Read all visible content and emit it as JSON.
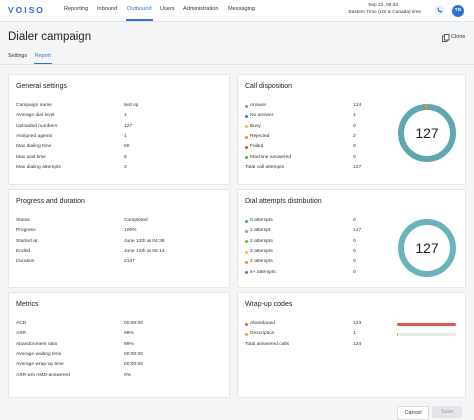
{
  "header": {
    "logo": "VOISO",
    "nav": [
      "Reporting",
      "Inbound",
      "Outbound",
      "Users",
      "Administration",
      "Messaging"
    ],
    "active_nav": 2,
    "datetime": "Sep 22, 09:33",
    "timezone": "Eastern Time (US & Canada) time",
    "avatar": "TB"
  },
  "page": {
    "title": "Dialer campaign",
    "clone": "Clone",
    "tabs": [
      "Settings",
      "Report"
    ],
    "active_tab": 1
  },
  "cards": [
    {
      "title": "General settings",
      "rows": [
        {
          "label": "Campaign name",
          "value": "test sp"
        },
        {
          "label": "Average dial level",
          "value": "1"
        },
        {
          "label": "Uploaded numbers",
          "value": "127"
        },
        {
          "label": "Assigned agents",
          "value": "1"
        },
        {
          "label": "Max dialing time",
          "value": "60"
        },
        {
          "label": "Max wait time",
          "value": "5"
        },
        {
          "label": "Max dialing attempts",
          "value": "3"
        }
      ]
    },
    {
      "title": "Call disposition",
      "chart": "donut",
      "rows": [
        {
          "label": "Answer",
          "value": "124",
          "color": "#5ea8ae"
        },
        {
          "label": "No answer",
          "value": "1",
          "color": "#3a7fd0"
        },
        {
          "label": "Busy",
          "value": "0",
          "color": "#f2c037"
        },
        {
          "label": "Rejected",
          "value": "2",
          "color": "#f08a24"
        },
        {
          "label": "Failed",
          "value": "0",
          "color": "#e04a3f"
        },
        {
          "label": "Machine answered",
          "value": "0",
          "color": "#4caf50"
        },
        {
          "label": "Total call attempts",
          "value": "127"
        }
      ]
    },
    {
      "title": "Progress and duration",
      "rows": [
        {
          "label": "Status",
          "value": "Completed"
        },
        {
          "label": "Progress",
          "value": "100%"
        },
        {
          "label": "Started at",
          "value": "June 12th at 04:38"
        },
        {
          "label": "Ended",
          "value": "June 12th at 05:14"
        },
        {
          "label": "Duration",
          "value": "2147"
        }
      ]
    },
    {
      "title": "Dial attempts distribution",
      "chart": "donut",
      "rows": [
        {
          "label": "0 attempts",
          "value": "0",
          "color": "#4caf50"
        },
        {
          "label": "1 attempt",
          "value": "127",
          "color": "#6ab3bb"
        },
        {
          "label": "2 attempts",
          "value": "0",
          "color": "#7cb342"
        },
        {
          "label": "3 attempts",
          "value": "0",
          "color": "#f2c037"
        },
        {
          "label": "4 attempts",
          "value": "0",
          "color": "#f08a24"
        },
        {
          "label": "5+ attempts",
          "value": "0",
          "color": "#3a7fd0"
        }
      ]
    },
    {
      "title": "Metrics",
      "rows": [
        {
          "label": "ACD",
          "value": "00:00:00"
        },
        {
          "label": "ASR",
          "value": "98%"
        },
        {
          "label": "Abandonment ratio",
          "value": "99%"
        },
        {
          "label": "Average waiting time",
          "value": "00:00:00"
        },
        {
          "label": "Average wrap-up time",
          "value": "00:00:00"
        },
        {
          "label": "ASR w/o AMD-answered",
          "value": "0%"
        }
      ]
    },
    {
      "title": "Wrap-up codes",
      "chart": "bars",
      "rows": [
        {
          "label": "Abandoned",
          "value": "123",
          "color": "#e0584f"
        },
        {
          "label": "Description",
          "value": "1",
          "color": "#f0a040"
        },
        {
          "label": "Total answered calls",
          "value": "124"
        }
      ]
    }
  ],
  "buttons": [
    "Cancel",
    "Save"
  ]
}
